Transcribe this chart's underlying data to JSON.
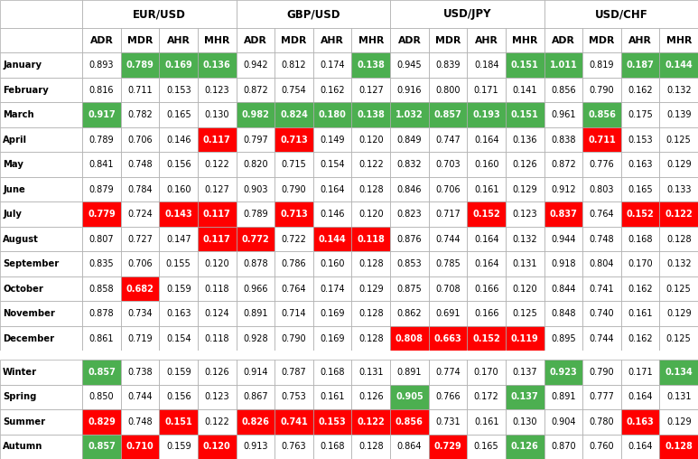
{
  "pairs": [
    "EUR/USD",
    "GBP/USD",
    "USD/JPY",
    "USD/CHF"
  ],
  "sub_cols": [
    "ADR",
    "MDR",
    "AHR",
    "MHR"
  ],
  "row_labels": [
    "January",
    "February",
    "March",
    "April",
    "May",
    "June",
    "July",
    "August",
    "September",
    "October",
    "November",
    "December",
    "",
    "Winter",
    "Spring",
    "Summer",
    "Autumn"
  ],
  "data": {
    "EUR/USD": {
      "ADR": [
        0.893,
        0.816,
        0.917,
        0.789,
        0.841,
        0.879,
        0.779,
        0.807,
        0.835,
        0.858,
        0.878,
        0.861,
        null,
        0.857,
        0.85,
        0.829,
        0.857
      ],
      "MDR": [
        0.789,
        0.711,
        0.782,
        0.706,
        0.748,
        0.784,
        0.724,
        0.727,
        0.706,
        0.682,
        0.734,
        0.719,
        null,
        0.738,
        0.744,
        0.748,
        0.71
      ],
      "AHR": [
        0.169,
        0.153,
        0.165,
        0.146,
        0.156,
        0.16,
        0.143,
        0.147,
        0.155,
        0.159,
        0.163,
        0.154,
        null,
        0.159,
        0.156,
        0.151,
        0.159
      ],
      "MHR": [
        0.136,
        0.123,
        0.13,
        0.117,
        0.122,
        0.127,
        0.117,
        0.117,
        0.12,
        0.118,
        0.124,
        0.118,
        null,
        0.126,
        0.123,
        0.122,
        0.12
      ]
    },
    "GBP/USD": {
      "ADR": [
        0.942,
        0.872,
        0.982,
        0.797,
        0.82,
        0.903,
        0.789,
        0.772,
        0.878,
        0.966,
        0.891,
        0.928,
        null,
        0.914,
        0.867,
        0.826,
        0.913
      ],
      "MDR": [
        0.812,
        0.754,
        0.824,
        0.713,
        0.715,
        0.79,
        0.713,
        0.722,
        0.786,
        0.764,
        0.714,
        0.79,
        null,
        0.787,
        0.753,
        0.741,
        0.763
      ],
      "AHR": [
        0.174,
        0.162,
        0.18,
        0.149,
        0.154,
        0.164,
        0.146,
        0.144,
        0.16,
        0.174,
        0.169,
        0.169,
        null,
        0.168,
        0.161,
        0.153,
        0.168
      ],
      "MHR": [
        0.138,
        0.127,
        0.138,
        0.12,
        0.122,
        0.128,
        0.12,
        0.118,
        0.128,
        0.129,
        0.128,
        0.128,
        null,
        0.131,
        0.126,
        0.122,
        0.128
      ]
    },
    "USD/JPY": {
      "ADR": [
        0.945,
        0.916,
        1.032,
        0.849,
        0.832,
        0.846,
        0.823,
        0.876,
        0.853,
        0.875,
        0.862,
        0.808,
        null,
        0.891,
        0.905,
        0.856,
        0.864
      ],
      "MDR": [
        0.839,
        0.8,
        0.857,
        0.747,
        0.703,
        0.706,
        0.717,
        0.744,
        0.785,
        0.708,
        0.691,
        0.663,
        null,
        0.774,
        0.766,
        0.731,
        0.729
      ],
      "AHR": [
        0.184,
        0.171,
        0.193,
        0.164,
        0.16,
        0.161,
        0.152,
        0.164,
        0.164,
        0.166,
        0.166,
        0.152,
        null,
        0.17,
        0.172,
        0.161,
        0.165
      ],
      "MHR": [
        0.151,
        0.141,
        0.151,
        0.136,
        0.126,
        0.129,
        0.123,
        0.132,
        0.131,
        0.12,
        0.125,
        0.119,
        null,
        0.137,
        0.137,
        0.13,
        0.126
      ]
    },
    "USD/CHF": {
      "ADR": [
        1.011,
        0.856,
        0.961,
        0.838,
        0.872,
        0.912,
        0.837,
        0.944,
        0.918,
        0.844,
        0.848,
        0.895,
        null,
        0.923,
        0.891,
        0.904,
        0.87
      ],
      "MDR": [
        0.819,
        0.79,
        0.856,
        0.711,
        0.776,
        0.803,
        0.764,
        0.748,
        0.804,
        0.741,
        0.74,
        0.744,
        null,
        0.79,
        0.777,
        0.78,
        0.76
      ],
      "AHR": [
        0.187,
        0.162,
        0.175,
        0.153,
        0.163,
        0.165,
        0.152,
        0.168,
        0.17,
        0.162,
        0.161,
        0.162,
        null,
        0.171,
        0.164,
        0.163,
        0.164
      ],
      "MHR": [
        0.144,
        0.132,
        0.139,
        0.125,
        0.129,
        0.133,
        0.122,
        0.128,
        0.132,
        0.125,
        0.129,
        0.125,
        null,
        0.134,
        0.131,
        0.129,
        0.128
      ]
    }
  },
  "cell_colors": {
    "EUR/USD": {
      "ADR": [
        "white",
        "white",
        "#4CAF50",
        "white",
        "white",
        "white",
        "#FF0000",
        "white",
        "white",
        "white",
        "white",
        "white",
        "white",
        "#4CAF50",
        "white",
        "#FF0000",
        "#4CAF50"
      ],
      "MDR": [
        "#4CAF50",
        "white",
        "white",
        "white",
        "white",
        "white",
        "white",
        "white",
        "white",
        "#FF0000",
        "white",
        "white",
        "white",
        "white",
        "white",
        "white",
        "#FF0000"
      ],
      "AHR": [
        "#4CAF50",
        "white",
        "white",
        "white",
        "white",
        "white",
        "#FF0000",
        "white",
        "white",
        "white",
        "white",
        "white",
        "white",
        "white",
        "white",
        "#FF0000",
        "white"
      ],
      "MHR": [
        "#4CAF50",
        "white",
        "white",
        "#FF0000",
        "white",
        "white",
        "#FF0000",
        "#FF0000",
        "white",
        "white",
        "white",
        "white",
        "white",
        "white",
        "white",
        "white",
        "#FF0000"
      ]
    },
    "GBP/USD": {
      "ADR": [
        "white",
        "white",
        "#4CAF50",
        "white",
        "white",
        "white",
        "white",
        "#FF0000",
        "white",
        "white",
        "white",
        "white",
        "white",
        "white",
        "white",
        "#FF0000",
        "white"
      ],
      "MDR": [
        "white",
        "white",
        "#4CAF50",
        "#FF0000",
        "white",
        "white",
        "#FF0000",
        "white",
        "white",
        "white",
        "white",
        "white",
        "white",
        "white",
        "white",
        "#FF0000",
        "white"
      ],
      "AHR": [
        "white",
        "white",
        "#4CAF50",
        "white",
        "white",
        "white",
        "white",
        "#FF0000",
        "white",
        "white",
        "white",
        "white",
        "white",
        "white",
        "white",
        "#FF0000",
        "white"
      ],
      "MHR": [
        "#4CAF50",
        "white",
        "#4CAF50",
        "white",
        "white",
        "white",
        "white",
        "#FF0000",
        "white",
        "white",
        "white",
        "white",
        "white",
        "white",
        "white",
        "#FF0000",
        "white"
      ]
    },
    "USD/JPY": {
      "ADR": [
        "white",
        "white",
        "#4CAF50",
        "white",
        "white",
        "white",
        "white",
        "white",
        "white",
        "white",
        "white",
        "#FF0000",
        "white",
        "white",
        "#4CAF50",
        "#FF0000",
        "white"
      ],
      "MDR": [
        "white",
        "white",
        "#4CAF50",
        "white",
        "white",
        "white",
        "white",
        "white",
        "white",
        "white",
        "white",
        "#FF0000",
        "white",
        "white",
        "white",
        "white",
        "#FF0000"
      ],
      "AHR": [
        "white",
        "white",
        "#4CAF50",
        "white",
        "white",
        "white",
        "#FF0000",
        "white",
        "white",
        "white",
        "white",
        "#FF0000",
        "white",
        "white",
        "white",
        "white",
        "white"
      ],
      "MHR": [
        "#4CAF50",
        "white",
        "#4CAF50",
        "white",
        "white",
        "white",
        "white",
        "white",
        "white",
        "white",
        "white",
        "#FF0000",
        "white",
        "white",
        "#4CAF50",
        "white",
        "#4CAF50"
      ]
    },
    "USD/CHF": {
      "ADR": [
        "#4CAF50",
        "white",
        "white",
        "white",
        "white",
        "white",
        "#FF0000",
        "white",
        "white",
        "white",
        "white",
        "white",
        "white",
        "#4CAF50",
        "white",
        "white",
        "white"
      ],
      "MDR": [
        "white",
        "white",
        "#4CAF50",
        "#FF0000",
        "white",
        "white",
        "white",
        "white",
        "white",
        "white",
        "white",
        "white",
        "white",
        "white",
        "white",
        "white",
        "white"
      ],
      "AHR": [
        "#4CAF50",
        "white",
        "white",
        "white",
        "white",
        "white",
        "#FF0000",
        "white",
        "white",
        "white",
        "white",
        "white",
        "white",
        "white",
        "white",
        "#FF0000",
        "white"
      ],
      "MHR": [
        "#4CAF50",
        "white",
        "white",
        "white",
        "white",
        "white",
        "#FF0000",
        "white",
        "white",
        "white",
        "white",
        "white",
        "white",
        "#4CAF50",
        "white",
        "white",
        "#FF0000"
      ]
    }
  }
}
